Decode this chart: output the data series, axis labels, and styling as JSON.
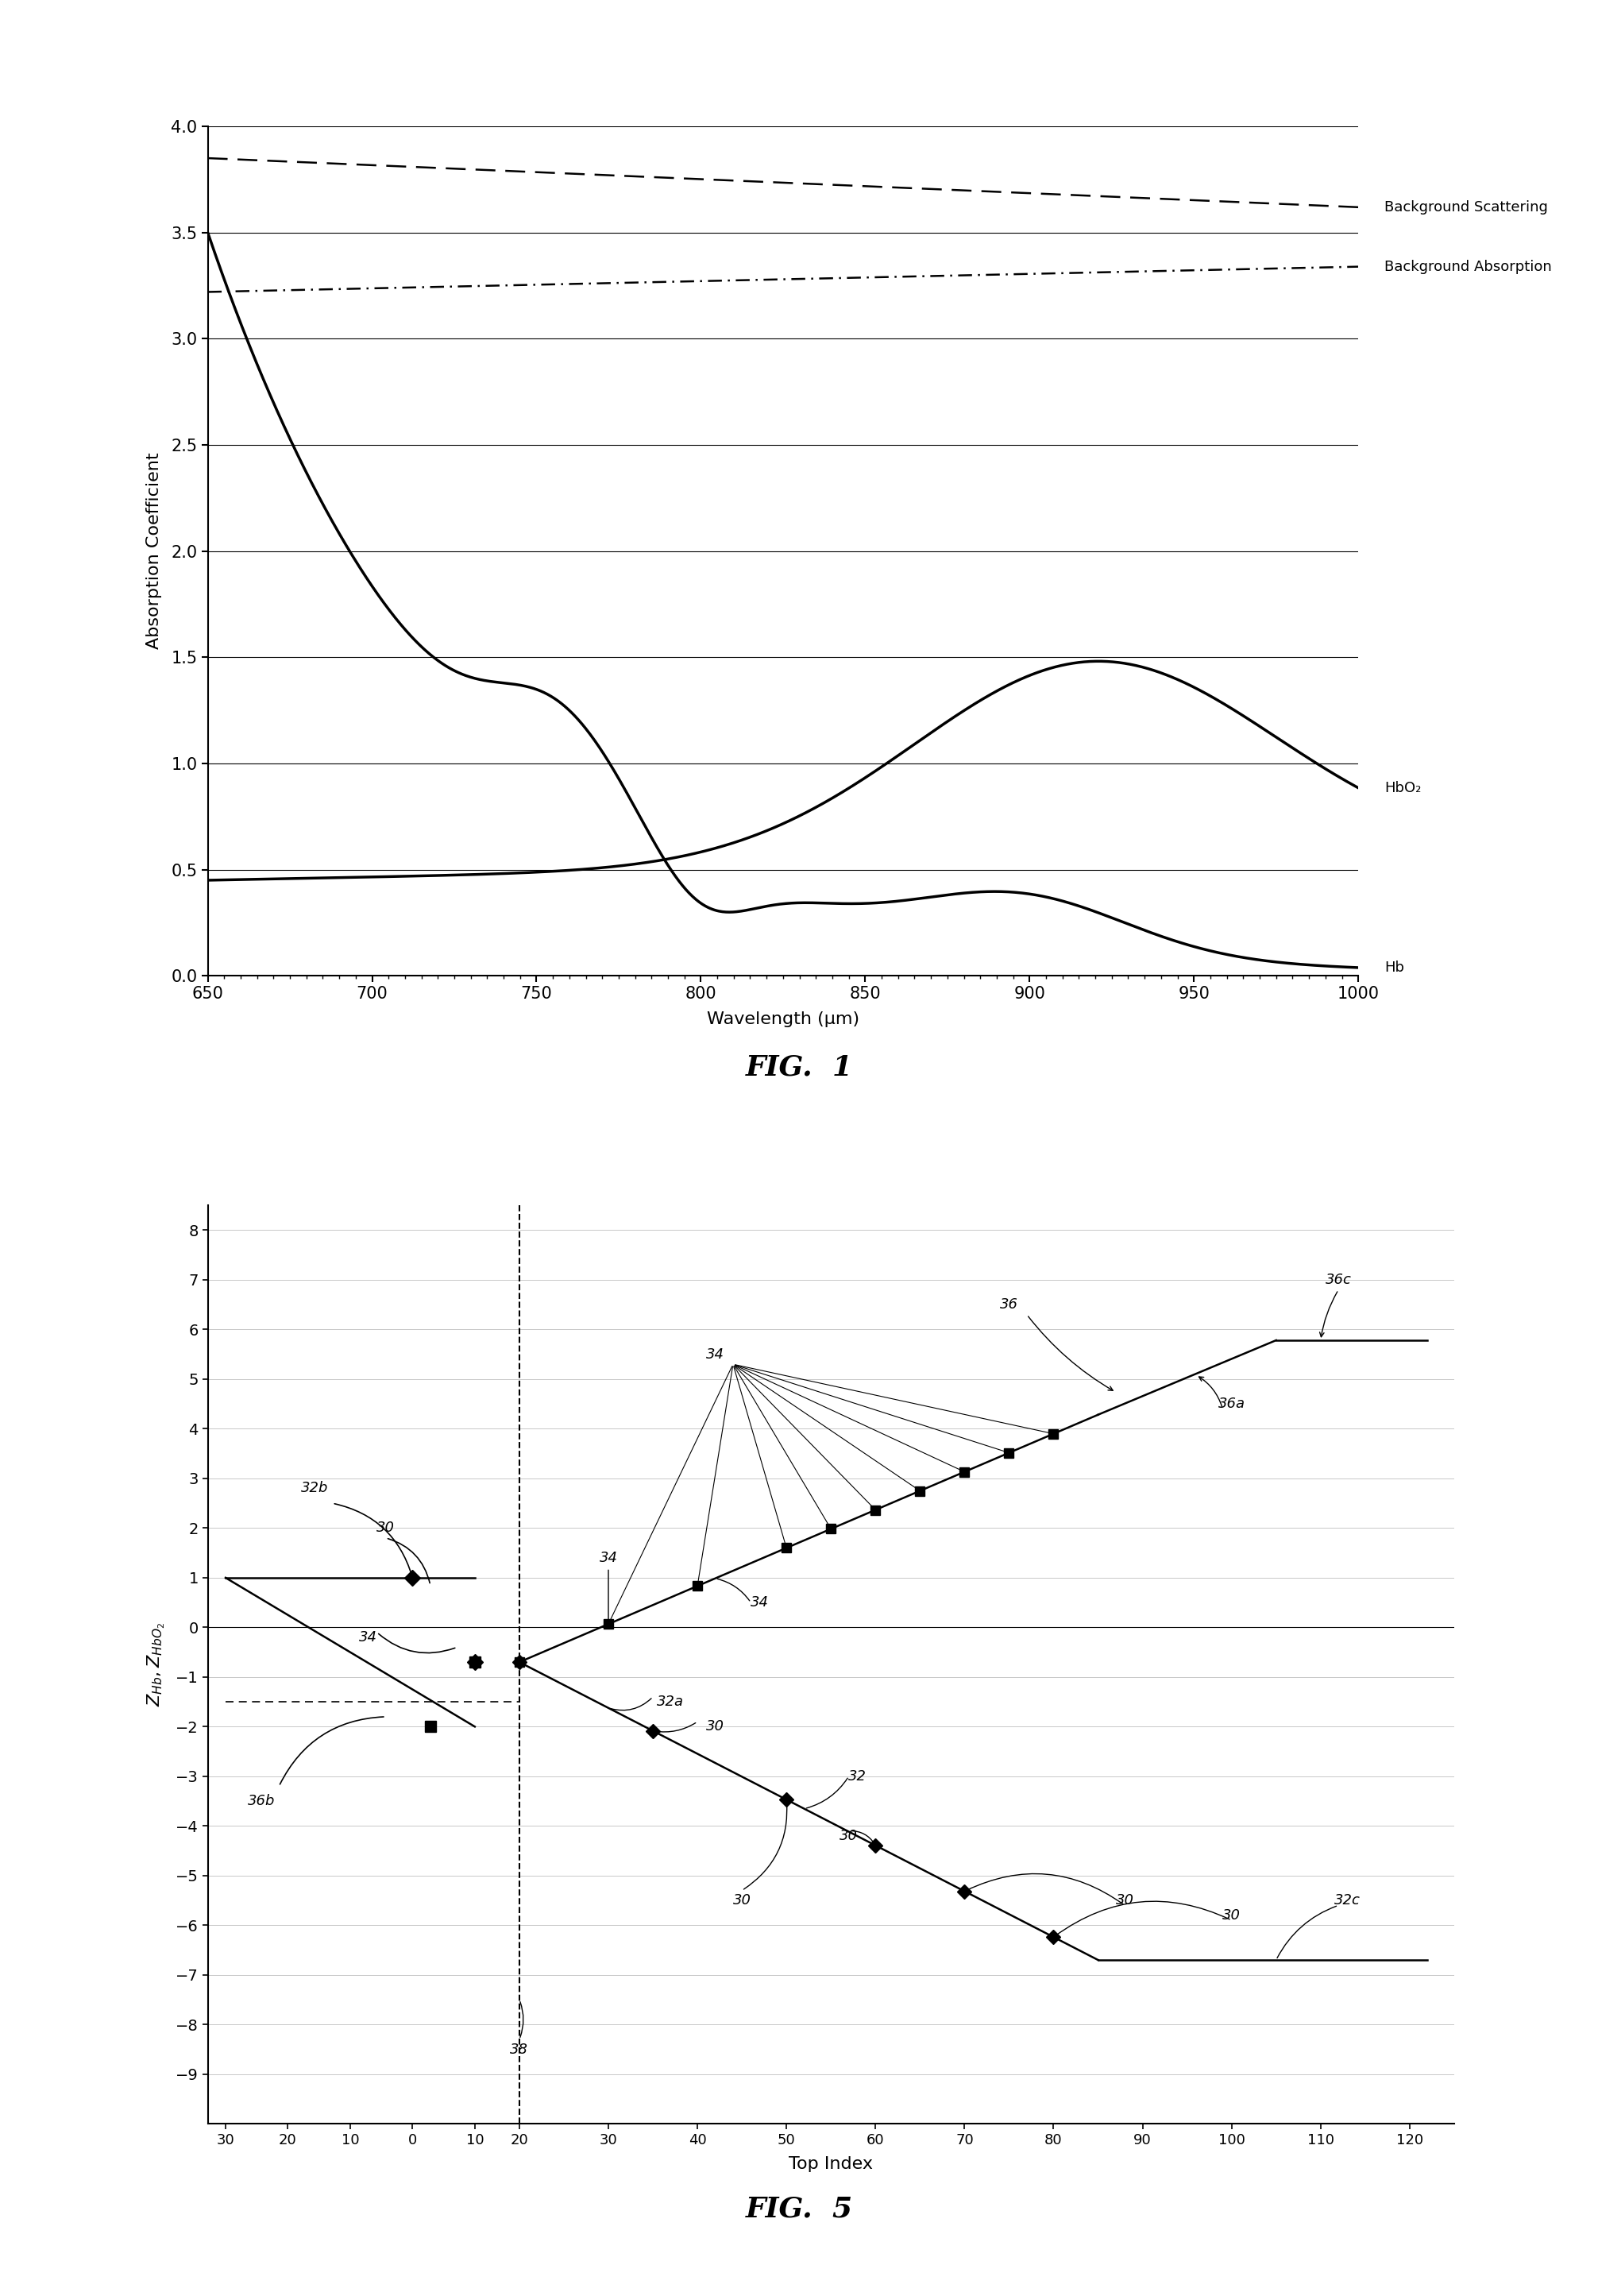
{
  "fig1": {
    "title": "FIG.  1",
    "xlabel": "Wavelength (μm)",
    "ylabel": "Absorption Coefficient",
    "xlim": [
      650,
      1000
    ],
    "ylim": [
      0,
      4
    ],
    "xticks": [
      650,
      700,
      750,
      800,
      850,
      900,
      950,
      1000
    ],
    "yticks": [
      0,
      0.5,
      1,
      1.5,
      2,
      2.5,
      3,
      3.5,
      4
    ],
    "bg_scattering_label": "Background Scattering",
    "bg_absorption_label": "Background Absorption",
    "hbo2_label": "HbO₂",
    "hb_label": "Hb"
  },
  "fig5": {
    "title": "FIG.  5",
    "xlabel": "Top Index",
    "ylabel": "Z_Hb, Z_HbO2",
    "ylim": [
      -10,
      8
    ],
    "yticks": [
      -9,
      -8,
      -7,
      -6,
      -5,
      -4,
      -3,
      -2,
      -1,
      0,
      1,
      2,
      3,
      4,
      5,
      6,
      7,
      8
    ]
  }
}
